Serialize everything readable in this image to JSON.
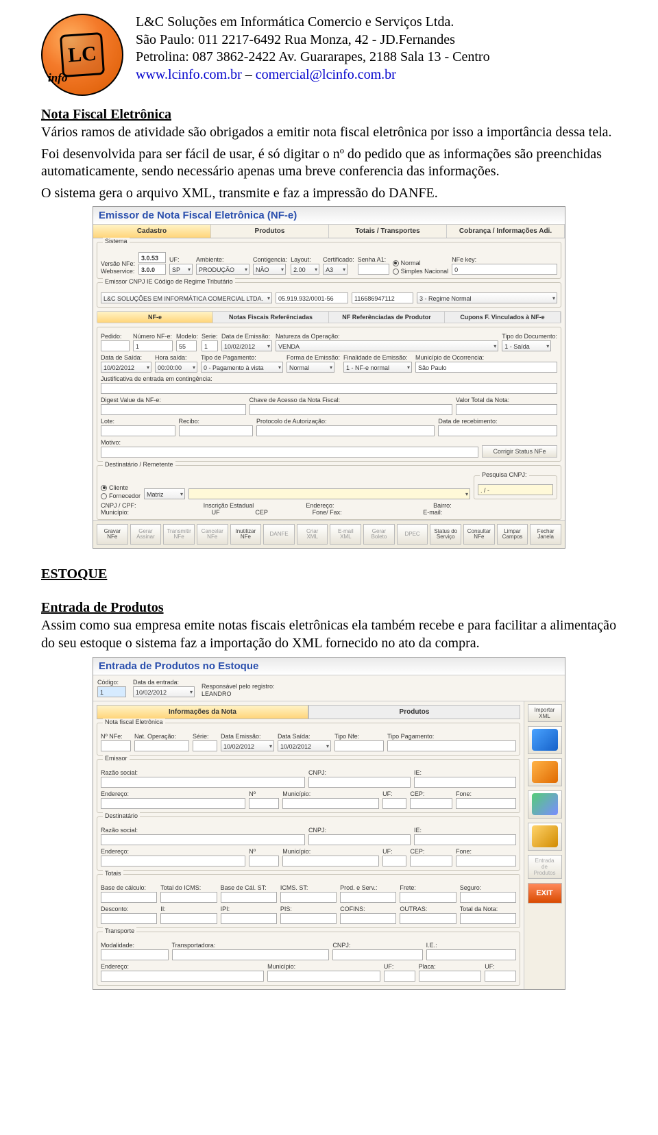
{
  "header": {
    "company": "L&C Soluções em Informática Comercio e Serviços Ltda.",
    "line2": "São Paulo: 011 2217-6492 Rua Monza, 42  -  JD.Fernandes",
    "line3": "Petrolina:  087 3862-2422 Av. Guararapes, 2188 Sala 13 - Centro",
    "site": "www.lcinfo.com.br",
    "sep": " – ",
    "email": "comercial@lcinfo.com.br",
    "logo_monogram": "LC",
    "logo_info": "info"
  },
  "nfe_section": {
    "title": "Nota Fiscal Eletrônica",
    "p1": "Vários ramos de atividade são obrigados a emitir nota fiscal eletrônica por isso a importância dessa tela.",
    "p2": "Foi desenvolvida para ser fácil de usar, é só digitar o nº do pedido que as informações são preenchidas automaticamente, sendo necessário apenas uma breve conferencia das informações.",
    "p3": "O sistema gera o arquivo XML, transmite e faz a impressão do DANFE."
  },
  "nfe": {
    "window_title": "Emissor de Nota Fiscal Eletrônica (NF-e)",
    "tabs": [
      "Cadastro",
      "Produtos",
      "Totais / Transportes",
      "Cobrança / Informações Adi."
    ],
    "sistema": {
      "legend": "Sistema",
      "versao_lbl": "Versão NFe:",
      "versao": "3.0.53",
      "webservice_lbl": "Webservice:",
      "webservice": "3.0.0",
      "uf_lbl": "UF:",
      "uf": "SP",
      "ambiente_lbl": "Ambiente:",
      "ambiente": "PRODUÇÃO",
      "conting_lbl": "Contigencia:",
      "conting": "NÃO",
      "layout_lbl": "Layout:",
      "layout": "2.00",
      "cert_lbl": "Certificado:",
      "cert": "A3",
      "senha_lbl": "Senha A1:",
      "regime_normal": "Normal",
      "regime_simples": "Simples Nacional",
      "nfe_key_lbl": "NFe key:",
      "nfe_key": "0"
    },
    "emissor": {
      "legend": "Emissor CNPJ IE Código de Regime Tributário",
      "nome": "L&C SOLUÇÕES EM INFORMÁTICA COMERCIAL LTDA.",
      "cnpj": "05.919.932/0001-56",
      "ie": "116686947112",
      "regime": "3 - Regime Normal"
    },
    "subtabs": [
      "NF-e",
      "Notas Fiscais Referênciadas",
      "NF Referênciadas de Produtor",
      "Cupons F. Vinculados à NF-e"
    ],
    "nfe_ident": {
      "pedido_lbl": "Pedido:",
      "numero_lbl": "Número NF-e:",
      "numero": "1",
      "modelo_lbl": "Modelo:",
      "modelo": "55",
      "serie_lbl": "Serie:",
      "serie": "1",
      "data_em_lbl": "Data de Emissão:",
      "data_em": "10/02/2012",
      "nat_lbl": "Natureza da Operação:",
      "nat": "VENDA",
      "tipo_lbl": "Tipo do Documento:",
      "tipo": "1 - Saída",
      "data_saida_lbl": "Data de Saída:",
      "data_saida": "10/02/2012",
      "hora_lbl": "Hora saída:",
      "hora": "00:00:00",
      "pag_lbl": "Tipo de Pagamento:",
      "pag": "0 - Pagamento à vista",
      "forma_lbl": "Forma de Emissão:",
      "forma": "Normal",
      "finalidade_lbl": "Finalidade de Emissão:",
      "finalidade": "1 - NF-e normal",
      "mun_lbl": "Município de Ocorrencia:",
      "mun": "São Paulo",
      "just_lbl": "Justificativa de entrada em contingência:",
      "digest_lbl": "Digest Value da NF-e:",
      "chave_lbl": "Chave de Acesso da Nota Fiscal:",
      "valor_lbl": "Valor Total da Nota:",
      "lote_lbl": "Lote:",
      "recibo_lbl": "Recibo:",
      "prot_lbl": "Protocolo de Autorização:",
      "datarec_lbl": "Data de recebimento:",
      "motivo_lbl": "Motivo:",
      "corrigir_btn": "Corrigir Status NFe"
    },
    "dest": {
      "legend": "Destinatário / Remetente",
      "cliente": "Cliente",
      "fornecedor": "Fornecedor",
      "matriz": "Matriz",
      "pesq_legend": "Pesquisa CNPJ:",
      "pesq_val": " .   / -",
      "cnpj_lbl": "CNPJ / CPF:",
      "ie_lbl": "Inscrição Estadual",
      "end_lbl": "Endereço:",
      "bairro_lbl": "Bairro:",
      "mun_lbl": "Município:",
      "uf_lbl": "UF",
      "cep_lbl": "CEP",
      "fone_lbl": "Fone/ Fax:",
      "email_lbl": "E-mail:"
    },
    "buttons": [
      "Gravar\nNFe",
      "Gerar\nAssinar",
      "Transmitir\nNFe",
      "Cancelar\nNFe",
      "Inutilizar\nNFe",
      "DANFE",
      "Criar\nXML",
      "E-mail\nXML",
      "Gerar\nBoleto",
      "DPEC",
      "Status do\nServiço",
      "Consultar\nNFe",
      "Limpar\nCampos",
      "Fechar\nJanela"
    ]
  },
  "estoque_section": {
    "title": "ESTOQUE",
    "sub": "Entrada de Produtos",
    "p": "Assim como sua empresa emite notas fiscais eletrônicas ela também recebe e para facilitar a alimentação do seu estoque o sistema faz a importação do XML fornecido no ato da compra."
  },
  "est": {
    "window_title": "Entrada de Produtos no Estoque",
    "codigo_lbl": "Código:",
    "codigo": "1",
    "data_lbl": "Data da entrada:",
    "data": "10/02/2012",
    "resp_lbl": "Responsável pelo registro:",
    "resp": "LEANDRO",
    "tabs": [
      "Informações da Nota",
      "Produtos"
    ],
    "nfe_group": {
      "legend": "Nota fiscal Eletrônica",
      "nf_lbl": "Nº NFe:",
      "nat_lbl": "Nat. Operação:",
      "serie_lbl": "Série:",
      "dataem_lbl": "Data Emissão:",
      "dataem": "10/02/2012",
      "datasaida_lbl": "Data Saída:",
      "datasaida": "10/02/2012",
      "tiponfe_lbl": "Tipo Nfe:",
      "tipopag_lbl": "Tipo Pagamento:"
    },
    "emissor": {
      "legend": "Emissor",
      "razao_lbl": "Razão social:",
      "cnpj_lbl": "CNPJ:",
      "ie_lbl": "IE:",
      "end_lbl": "Endereço:",
      "n_lbl": "Nº",
      "mun_lbl": "Município:",
      "uf_lbl": "UF:",
      "cep_lbl": "CEP:",
      "fone_lbl": "Fone:"
    },
    "dest": {
      "legend": "Destinatário",
      "razao_lbl": "Razão social:",
      "cnpj_lbl": "CNPJ:",
      "ie_lbl": "IE:",
      "end_lbl": "Endereço:",
      "n_lbl": "Nº",
      "mun_lbl": "Município:",
      "uf_lbl": "UF:",
      "cep_lbl": "CEP:",
      "fone_lbl": "Fone:"
    },
    "totais": {
      "legend": "Totais",
      "bc_lbl": "Base de cálculo:",
      "icms_lbl": "Total do ICMS:",
      "bcst_lbl": "Base de Cál. ST:",
      "icmsst_lbl": "ICMS. ST:",
      "prod_lbl": "Prod. e Serv.:",
      "frete_lbl": "Frete:",
      "seguro_lbl": "Seguro:",
      "desc_lbl": "Desconto:",
      "ii_lbl": "II:",
      "ipi_lbl": "IPI:",
      "pis_lbl": "PIS:",
      "cofins_lbl": "COFINS:",
      "outras_lbl": "OUTRAS:",
      "total_lbl": "Total da Nota:"
    },
    "transporte": {
      "legend": "Transporte",
      "mod_lbl": "Modalidade:",
      "transp_lbl": "Transportadora:",
      "cnpj_lbl": "CNPJ:",
      "ie_lbl": "I.E.:",
      "end_lbl": "Endereço:",
      "mun_lbl": "Município:",
      "uf_lbl": "UF:",
      "placa_lbl": "Placa:",
      "uf2_lbl": "UF:"
    },
    "side": [
      "Importar\nXML",
      "",
      "",
      "",
      "",
      "Entrada\nde\nProdutos",
      "EXIT"
    ]
  }
}
